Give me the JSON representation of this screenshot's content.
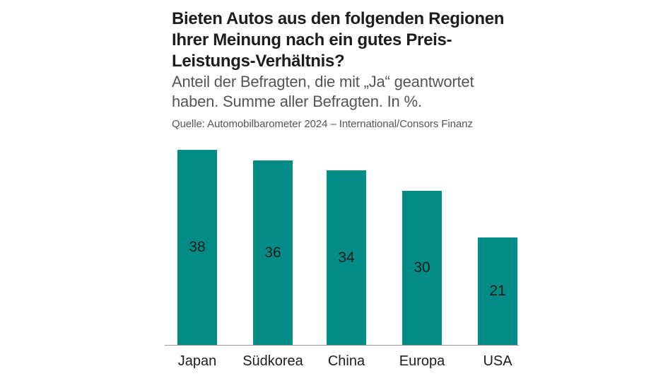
{
  "page": {
    "background": "#ffffff"
  },
  "header": {
    "title": "Bieten Autos aus den folgenden Regionen\nIhrer Meinung nach ein gutes Preis-\nLeistungs-Verhältnis?",
    "subtitle": "Anteil der Befragten, die mit „Ja“ geantwortet\nhaben. Summe aller Befragten. In %.",
    "source": "Quelle: Automobilbarometer 2024 – International/Consors Finanz"
  },
  "chart_data": {
    "type": "bar",
    "categories": [
      "Japan",
      "Südkorea",
      "China",
      "Europa",
      "USA"
    ],
    "values": [
      38,
      36,
      34,
      30,
      21
    ],
    "title": "Bieten Autos aus den folgenden Regionen Ihrer Meinung nach ein gutes Preis-Leistungs-Verhältnis?",
    "subtitle": "Anteil der Befragten, die mit „Ja“ geantwortet haben. Summe aller Befragten. In %.",
    "source": "Quelle: Automobilbarometer 2024 – International/Consors Finanz",
    "unit": "%",
    "xlabel": "",
    "ylabel": "",
    "ylim": [
      0,
      38
    ],
    "grid": false,
    "legend": false,
    "value_labels": "centered-inside-bars",
    "colors": {
      "bar": "#038C85",
      "value_label": "#1d1d1b",
      "category_label": "#1d1d1b",
      "title": "#1d1d1b",
      "subtitle": "#555555",
      "axis_line": "#9b9b9b"
    }
  }
}
